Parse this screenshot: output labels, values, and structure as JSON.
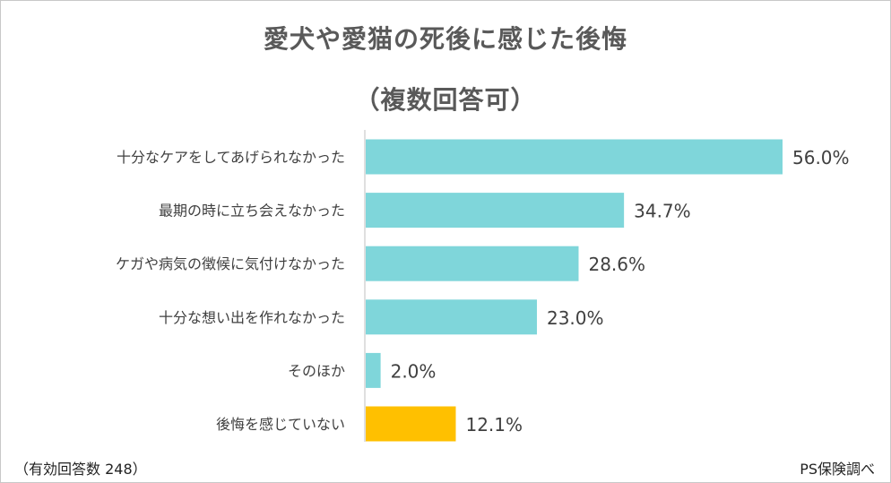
{
  "chart_data": {
    "type": "bar",
    "orientation": "horizontal",
    "title": "愛犬や愛猫の死後に感じた後悔",
    "subtitle": "（複数回答可）",
    "categories": [
      "十分なケアをしてあげられなかった",
      "最期の時に立ち会えなかった",
      "ケガや病気の徴候に気付けなかった",
      "十分な想い出を作れなかった",
      "そのほか",
      "後悔を感じていない"
    ],
    "values": [
      56.0,
      34.7,
      28.6,
      23.0,
      2.0,
      12.1
    ],
    "value_labels": [
      "56.0%",
      "34.7%",
      "28.6%",
      "23.0%",
      "2.0%",
      "12.1%"
    ],
    "unit": "%",
    "xlim": [
      0,
      60
    ],
    "grid": false,
    "colors": [
      "#7fd6da",
      "#7fd6da",
      "#7fd6da",
      "#7fd6da",
      "#7fd6da",
      "#ffc000"
    ]
  },
  "footnote_left": "（有効回答数 248）",
  "footnote_right": "PS保険調べ"
}
